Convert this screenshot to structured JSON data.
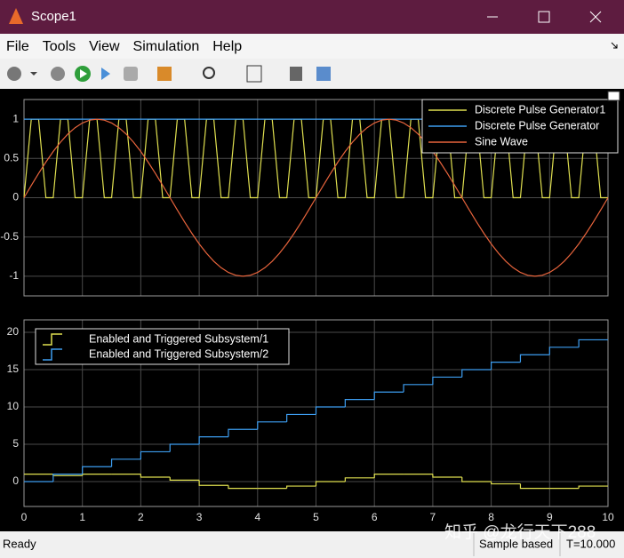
{
  "window": {
    "title": "Scope1",
    "menu": [
      "File",
      "Tools",
      "View",
      "Simulation",
      "Help"
    ],
    "status": {
      "left": "Ready",
      "mode": "Sample based",
      "time": "T=10.000"
    },
    "watermark": "知乎 @龙行天下288"
  },
  "chart_data": [
    {
      "type": "line",
      "legend": "upper right",
      "grid": true,
      "show_xtick_labels": false,
      "xlim": [
        0,
        10
      ],
      "ylim": [
        -1.25,
        1.25
      ],
      "xticks": [
        0,
        1,
        2,
        3,
        4,
        5,
        6,
        7,
        8,
        9,
        10
      ],
      "yticks": [
        -1,
        -0.5,
        0,
        0.5,
        1
      ],
      "series": [
        {
          "name": "Discrete Pulse Generator1",
          "color": "#e0e050",
          "x": [
            0,
            0.125,
            0.25,
            0.375,
            0.5,
            0.625,
            0.75,
            0.875,
            1,
            1.125,
            1.25,
            1.375,
            1.5,
            1.625,
            1.75,
            1.875,
            2,
            2.125,
            2.25,
            2.375,
            2.5,
            2.625,
            2.75,
            2.875,
            3,
            3.125,
            3.25,
            3.375,
            3.5,
            3.625,
            3.75,
            3.875,
            4,
            4.125,
            4.25,
            4.375,
            4.5,
            4.625,
            4.75,
            4.875,
            5,
            5.125,
            5.25,
            5.375,
            5.5,
            5.625,
            5.75,
            5.875,
            6,
            6.125,
            6.25,
            6.375,
            6.5,
            6.625,
            6.75,
            6.875,
            7,
            7.125,
            7.25,
            7.375,
            7.5,
            7.625,
            7.75,
            7.875,
            8,
            8.125,
            8.25,
            8.375,
            8.5,
            8.625,
            8.75,
            8.875,
            9,
            9.125,
            9.25,
            9.375,
            9.5,
            9.625,
            9.75,
            9.875,
            10
          ],
          "values": [
            0,
            1,
            1,
            0,
            0,
            1,
            1,
            0,
            0,
            1,
            1,
            0,
            0,
            1,
            1,
            0,
            0,
            1,
            1,
            0,
            0,
            1,
            1,
            0,
            0,
            1,
            1,
            0,
            0,
            1,
            1,
            0,
            0,
            1,
            1,
            0,
            0,
            1,
            1,
            0,
            0,
            1,
            1,
            0,
            0,
            1,
            1,
            0,
            0,
            1,
            1,
            0,
            0,
            1,
            1,
            0,
            0,
            1,
            1,
            0,
            0,
            1,
            1,
            0,
            0,
            1,
            1,
            0,
            0,
            1,
            1,
            0,
            0,
            1,
            1,
            0,
            0,
            1,
            1,
            0,
            0
          ]
        },
        {
          "name": "Discrete Pulse Generator",
          "color": "#3d9df0",
          "x": [
            0,
            10
          ],
          "values": [
            1,
            1
          ]
        },
        {
          "name": "Sine Wave",
          "color": "#e8643c",
          "x": [
            0,
            0.125,
            0.25,
            0.375,
            0.5,
            0.625,
            0.75,
            0.875,
            1,
            1.125,
            1.25,
            1.375,
            1.5,
            1.625,
            1.75,
            1.875,
            2,
            2.125,
            2.25,
            2.375,
            2.5,
            2.625,
            2.75,
            2.875,
            3,
            3.125,
            3.25,
            3.375,
            3.5,
            3.625,
            3.75,
            3.875,
            4,
            4.125,
            4.25,
            4.375,
            4.5,
            4.625,
            4.75,
            4.875,
            5,
            5.125,
            5.25,
            5.375,
            5.5,
            5.625,
            5.75,
            5.875,
            6,
            6.125,
            6.25,
            6.375,
            6.5,
            6.625,
            6.75,
            6.875,
            7,
            7.125,
            7.25,
            7.375,
            7.5,
            7.625,
            7.75,
            7.875,
            8,
            8.125,
            8.25,
            8.375,
            8.5,
            8.625,
            8.75,
            8.875,
            9,
            9.125,
            9.25,
            9.375,
            9.5,
            9.625,
            9.75,
            9.875,
            10
          ],
          "values": [
            0,
            0.156,
            0.309,
            0.454,
            0.588,
            0.707,
            0.809,
            0.891,
            0.951,
            0.988,
            1,
            0.988,
            0.951,
            0.891,
            0.809,
            0.707,
            0.588,
            0.454,
            0.309,
            0.156,
            0,
            -0.156,
            -0.309,
            -0.454,
            -0.588,
            -0.707,
            -0.809,
            -0.891,
            -0.951,
            -0.988,
            -1,
            -0.988,
            -0.951,
            -0.891,
            -0.809,
            -0.707,
            -0.588,
            -0.454,
            -0.309,
            -0.156,
            0,
            0.156,
            0.309,
            0.454,
            0.588,
            0.707,
            0.809,
            0.891,
            0.951,
            0.988,
            1,
            0.988,
            0.951,
            0.891,
            0.809,
            0.707,
            0.588,
            0.454,
            0.309,
            0.156,
            0,
            -0.156,
            -0.309,
            -0.454,
            -0.588,
            -0.707,
            -0.809,
            -0.891,
            -0.951,
            -0.988,
            -1,
            -0.988,
            -0.951,
            -0.891,
            -0.809,
            -0.707,
            -0.588,
            -0.454,
            -0.309,
            -0.156,
            0
          ]
        }
      ]
    },
    {
      "type": "step",
      "legend": "upper left",
      "grid": true,
      "show_xtick_labels": true,
      "xlim": [
        0,
        10
      ],
      "ylim": [
        -3.33,
        21.67
      ],
      "xticks": [
        0,
        1,
        2,
        3,
        4,
        5,
        6,
        7,
        8,
        9,
        10
      ],
      "yticks": [
        0,
        5,
        10,
        15,
        20
      ],
      "series": [
        {
          "name": "Enabled and Triggered Subsystem/1",
          "color": "#e0e050",
          "x": [
            0,
            0.5,
            1,
            1.5,
            2,
            2.5,
            3,
            3.5,
            4,
            4.5,
            5,
            5.5,
            6,
            6.5,
            7,
            7.5,
            8,
            8.5,
            9,
            9.5
          ],
          "values": [
            1,
            0.8,
            1,
            1,
            0.6,
            0.2,
            -0.5,
            -0.9,
            -0.9,
            -0.6,
            0,
            0.5,
            1,
            1,
            0.6,
            0,
            -0.3,
            -0.9,
            -0.9,
            -0.6
          ]
        },
        {
          "name": "Enabled and Triggered Subsystem/2",
          "color": "#3d9df0",
          "x": [
            0,
            0.5,
            1,
            1.5,
            2,
            2.5,
            3,
            3.5,
            4,
            4.5,
            5,
            5.5,
            6,
            6.5,
            7,
            7.5,
            8,
            8.5,
            9,
            9.5
          ],
          "values": [
            0,
            1,
            2,
            3,
            4,
            5,
            6,
            7,
            8,
            9,
            10,
            11,
            12,
            13,
            14,
            15,
            16,
            17,
            18,
            19
          ]
        }
      ]
    }
  ]
}
